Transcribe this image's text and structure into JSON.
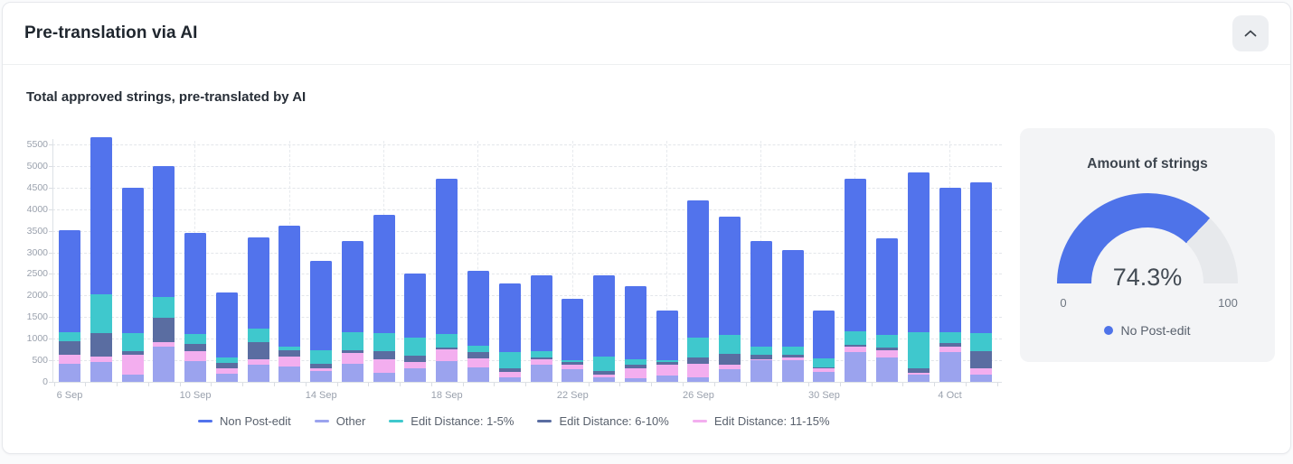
{
  "panel": {
    "title": "Pre-translation via AI",
    "collapse_icon": "chevron-up"
  },
  "chart_section": {
    "subtitle": "Total approved strings, pre-translated by AI"
  },
  "chart_data": {
    "type": "bar",
    "stacked": true,
    "title": "Total approved strings, pre-translated by AI",
    "x": [
      "6 Sep",
      "7 Sep",
      "8 Sep",
      "9 Sep",
      "10 Sep",
      "11 Sep",
      "12 Sep",
      "13 Sep",
      "14 Sep",
      "15 Sep",
      "16 Sep",
      "17 Sep",
      "18 Sep",
      "19 Sep",
      "20 Sep",
      "21 Sep",
      "22 Sep",
      "23 Sep",
      "24 Sep",
      "25 Sep",
      "26 Sep",
      "27 Sep",
      "28 Sep",
      "29 Sep",
      "30 Sep",
      "1 Oct",
      "2 Oct",
      "3 Oct",
      "4 Oct",
      "5 Oct"
    ],
    "x_tick_indices": [
      0,
      4,
      8,
      12,
      16,
      20,
      24,
      28
    ],
    "ylim": [
      0,
      5500
    ],
    "y_ticks": [
      0,
      500,
      1000,
      1500,
      2000,
      2500,
      3000,
      3500,
      4000,
      4500,
      5000,
      5500
    ],
    "grid": true,
    "legend_position": "bottom",
    "stack_order_bottom_to_top": [
      "Other",
      "Edit Distance: 11-15%",
      "Edit Distance: 6-10%",
      "Edit Distance: 1-5%",
      "Non Post-edit"
    ],
    "series": [
      {
        "name": "Non Post-edit",
        "color": "#5273ec",
        "values": [
          2370,
          3650,
          3370,
          3040,
          2350,
          1510,
          2110,
          2800,
          2070,
          2120,
          2730,
          1490,
          3600,
          1740,
          1580,
          1750,
          1430,
          1870,
          1690,
          1160,
          3190,
          2740,
          2450,
          2240,
          1120,
          3530,
          2240,
          3690,
          3350,
          3500
        ]
      },
      {
        "name": "Other",
        "color": "#9ba3ee",
        "values": [
          420,
          450,
          170,
          810,
          480,
          180,
          390,
          360,
          240,
          410,
          200,
          320,
          480,
          340,
          110,
          390,
          290,
          100,
          80,
          150,
          100,
          290,
          500,
          500,
          220,
          700,
          570,
          170,
          700,
          170
        ]
      },
      {
        "name": "Edit Distance: 1-5%",
        "color": "#3fc8cd",
        "values": [
          200,
          900,
          410,
          470,
          230,
          130,
          320,
          70,
          320,
          400,
          420,
          420,
          300,
          130,
          380,
          140,
          50,
          340,
          140,
          50,
          450,
          450,
          190,
          180,
          200,
          310,
          300,
          840,
          260,
          410
        ]
      },
      {
        "name": "Edit Distance: 6-10%",
        "color": "#5a6da1",
        "values": [
          330,
          540,
          80,
          580,
          160,
          120,
          390,
          160,
          100,
          80,
          180,
          140,
          40,
          150,
          100,
          40,
          60,
          90,
          70,
          60,
          150,
          250,
          90,
          60,
          30,
          50,
          50,
          120,
          70,
          390
        ]
      },
      {
        "name": "Edit Distance: 11-15%",
        "color": "#f3aeef",
        "values": [
          200,
          130,
          460,
          100,
          230,
          140,
          140,
          220,
          80,
          250,
          330,
          140,
          280,
          210,
          110,
          140,
          100,
          60,
          240,
          240,
          320,
          100,
          30,
          70,
          90,
          110,
          170,
          30,
          120,
          150
        ]
      }
    ]
  },
  "gauge": {
    "title": "Amount of strings",
    "value": 74.3,
    "value_label": "74.3%",
    "min_label": "0",
    "max_label": "100",
    "legend": "No Post-edit",
    "color": "#4e73e9",
    "track_color": "#e7e9ec"
  }
}
